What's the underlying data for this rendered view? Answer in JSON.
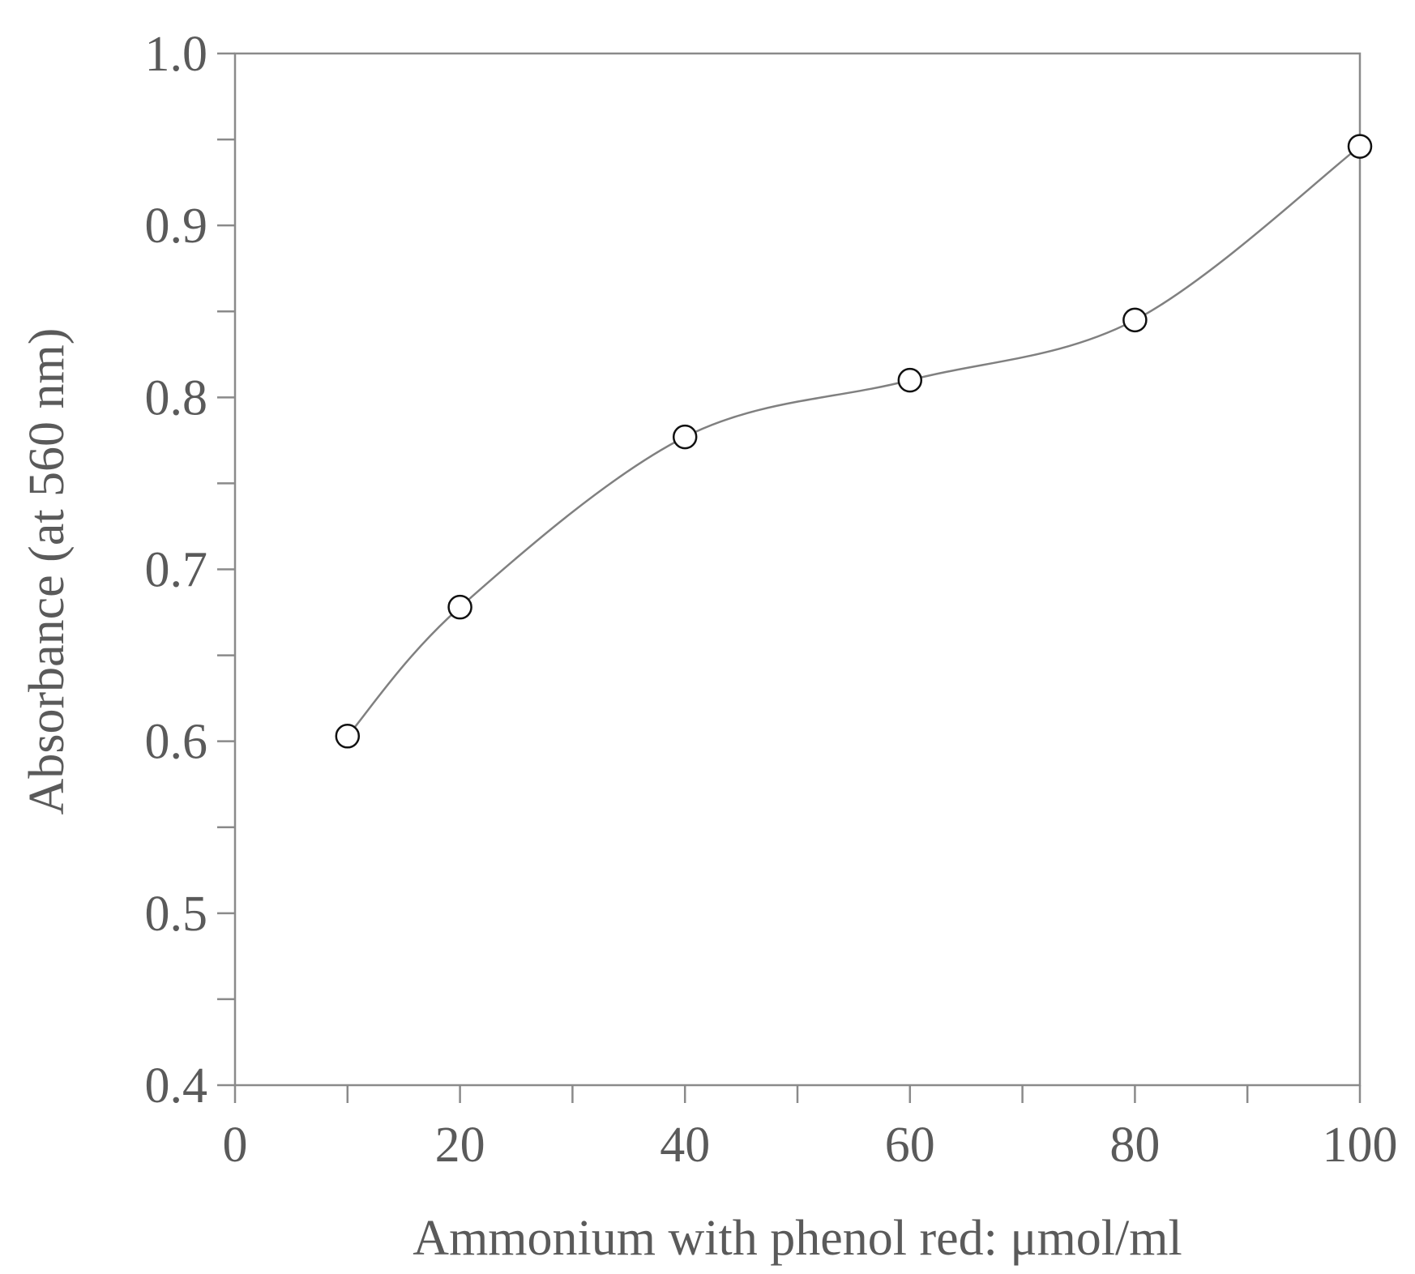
{
  "chart_data": {
    "type": "line",
    "title": "",
    "xlabel": "Ammonium with phenol red: μmol/ml",
    "ylabel": "Absorbance (at 560 nm)",
    "xlim": [
      0,
      100
    ],
    "ylim": [
      0.4,
      1.0
    ],
    "x_major_ticks": [
      0,
      20,
      40,
      60,
      80,
      100
    ],
    "x_minor_ticks": [
      10,
      30,
      50,
      70,
      90
    ],
    "y_major_ticks": [
      0.4,
      0.5,
      0.6,
      0.7,
      0.8,
      0.9,
      1.0
    ],
    "y_minor_ticks": [
      0.45,
      0.55,
      0.65,
      0.75,
      0.85,
      0.95
    ],
    "x_tick_labels": [
      "0",
      "20",
      "40",
      "60",
      "80",
      "100"
    ],
    "y_tick_labels": [
      "0.4",
      "0.5",
      "0.6",
      "0.7",
      "0.8",
      "0.9",
      "1.0"
    ],
    "grid": false,
    "legend": "none",
    "frame": "box",
    "line_style": "smooth",
    "marker": "open-circle",
    "series": [
      {
        "x": [
          10,
          20,
          40,
          60,
          80,
          100
        ],
        "y": [
          0.603,
          0.678,
          0.777,
          0.81,
          0.845,
          0.946
        ]
      }
    ],
    "colors": {
      "axis": "#8a8a8a",
      "line": "#808080",
      "marker": "#111111",
      "text": "#5a5a5a"
    }
  }
}
